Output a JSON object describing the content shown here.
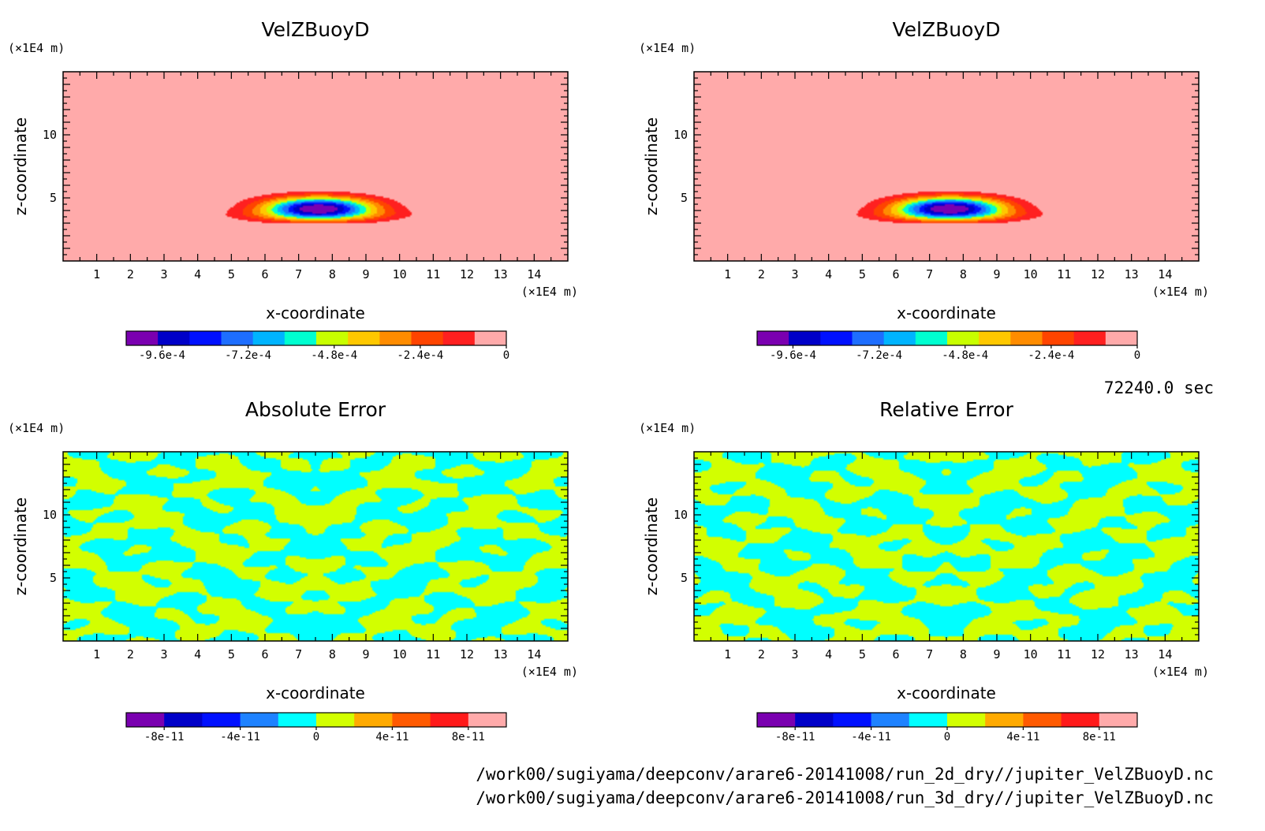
{
  "colors": {
    "field_scale": [
      "#7a00b0",
      "#0000c8",
      "#0010ff",
      "#1e6eff",
      "#00b4ff",
      "#00ffd0",
      "#c8ff00",
      "#ffc800",
      "#ff8c00",
      "#ff4400",
      "#ff2020",
      "#ffaaaa"
    ],
    "error_scale": [
      "#7a00b0",
      "#0000c8",
      "#0010ff",
      "#1e82ff",
      "#00ffff",
      "#d2ff00",
      "#ffaa00",
      "#ff5a00",
      "#ff1a1a",
      "#ffaaaa"
    ],
    "error_cyan": "#00ffff",
    "error_yellow": "#d2ff00"
  },
  "chart_data": [
    {
      "type": "heatmap",
      "title": "VelZBuoyD",
      "xlabel": "x-coordinate",
      "ylabel": "z-coordinate",
      "x_unit": "(×1E4 m)",
      "y_unit": "(×1E4 m)",
      "xlim": [
        0,
        15
      ],
      "ylim": [
        0,
        15
      ],
      "x_ticks": [
        "1",
        "2",
        "3",
        "4",
        "5",
        "6",
        "7",
        "8",
        "9",
        "10",
        "11",
        "12",
        "13",
        "14"
      ],
      "y_ticks": [
        "5",
        "10"
      ],
      "field": "buoyancy",
      "colorbar": {
        "range": [
          -0.00106,
          0
        ],
        "tick_labels": [
          "-9.6e-4",
          "-7.2e-4",
          "-4.8e-4",
          "-2.4e-4",
          "0"
        ],
        "tick_values": [
          -0.00096,
          -0.00072,
          -0.00048,
          -0.00024,
          0
        ]
      }
    },
    {
      "type": "heatmap",
      "title": "VelZBuoyD",
      "xlabel": "x-coordinate",
      "ylabel": "z-coordinate",
      "x_unit": "(×1E4 m)",
      "y_unit": "(×1E4 m)",
      "xlim": [
        0,
        15
      ],
      "ylim": [
        0,
        15
      ],
      "x_ticks": [
        "1",
        "2",
        "3",
        "4",
        "5",
        "6",
        "7",
        "8",
        "9",
        "10",
        "11",
        "12",
        "13",
        "14"
      ],
      "y_ticks": [
        "5",
        "10"
      ],
      "field": "buoyancy",
      "colorbar": {
        "range": [
          -0.00106,
          0
        ],
        "tick_labels": [
          "-9.6e-4",
          "-7.2e-4",
          "-4.8e-4",
          "-2.4e-4",
          "0"
        ],
        "tick_values": [
          -0.00096,
          -0.00072,
          -0.00048,
          -0.00024,
          0
        ]
      }
    },
    {
      "type": "heatmap",
      "title": "Absolute Error",
      "xlabel": "x-coordinate",
      "ylabel": "z-coordinate",
      "x_unit": "(×1E4 m)",
      "y_unit": "(×1E4 m)",
      "xlim": [
        0,
        15
      ],
      "ylim": [
        0,
        15
      ],
      "x_ticks": [
        "1",
        "2",
        "3",
        "4",
        "5",
        "6",
        "7",
        "8",
        "9",
        "10",
        "11",
        "12",
        "13",
        "14"
      ],
      "y_ticks": [
        "5",
        "10"
      ],
      "field": "noise",
      "seed": 11,
      "colorbar": {
        "range": [
          -1e-10,
          1e-10
        ],
        "tick_labels": [
          "-8e-11",
          "-4e-11",
          "0",
          "4e-11",
          "8e-11"
        ],
        "tick_values": [
          -8e-11,
          -4e-11,
          0,
          4e-11,
          8e-11
        ]
      }
    },
    {
      "type": "heatmap",
      "title": "Relative Error",
      "xlabel": "x-coordinate",
      "ylabel": "z-coordinate",
      "x_unit": "(×1E4 m)",
      "y_unit": "(×1E4 m)",
      "xlim": [
        0,
        15
      ],
      "ylim": [
        0,
        15
      ],
      "x_ticks": [
        "1",
        "2",
        "3",
        "4",
        "5",
        "6",
        "7",
        "8",
        "9",
        "10",
        "11",
        "12",
        "13",
        "14"
      ],
      "y_ticks": [
        "5",
        "10"
      ],
      "field": "noise",
      "seed": 29,
      "colorbar": {
        "range": [
          -1e-10,
          1e-10
        ],
        "tick_labels": [
          "-8e-11",
          "-4e-11",
          "0",
          "4e-11",
          "8e-11"
        ],
        "tick_values": [
          -8e-11,
          -4e-11,
          0,
          4e-11,
          8e-11
        ]
      }
    }
  ],
  "timestamp": "72240.0 sec",
  "files": [
    "/work00/sugiyama/deepconv/arare6-20141008/run_2d_dry//jupiter_VelZBuoyD.nc",
    "/work00/sugiyama/deepconv/arare6-20141008/run_3d_dry//jupiter_VelZBuoyD.nc"
  ]
}
